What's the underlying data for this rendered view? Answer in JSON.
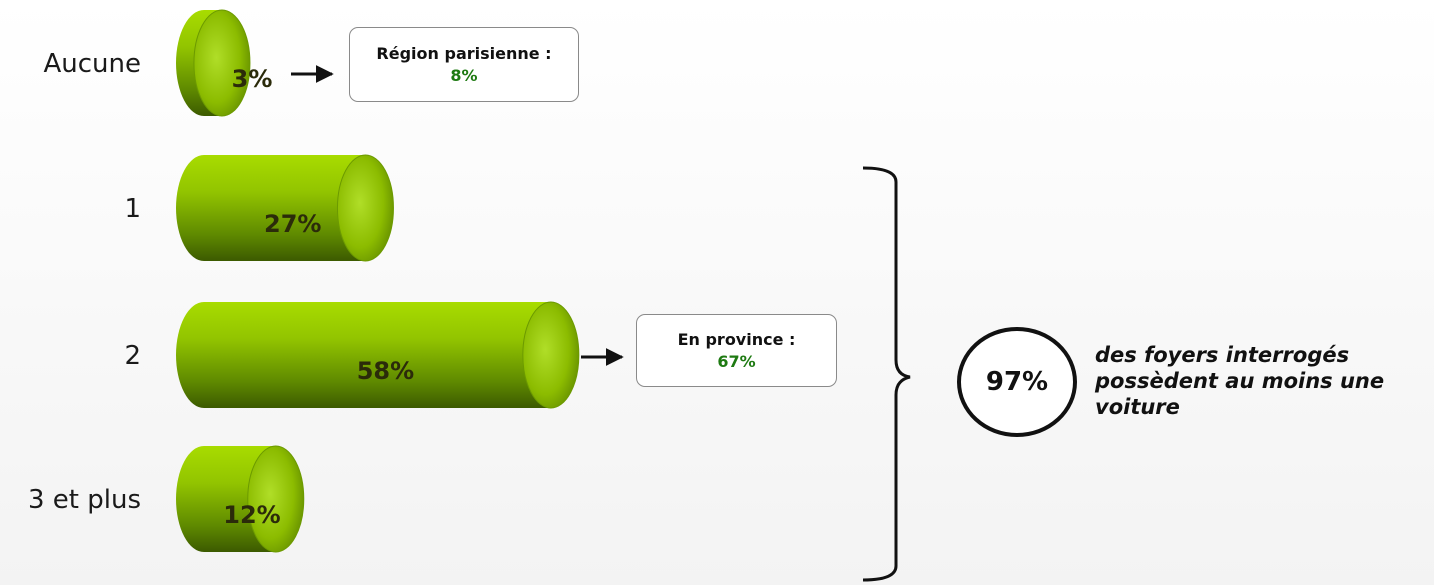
{
  "chart_data": {
    "type": "bar",
    "orientation": "horizontal",
    "categories": [
      "Aucune",
      "1",
      "2",
      "3 et plus"
    ],
    "values": [
      3,
      27,
      58,
      12
    ],
    "value_labels": [
      "3%",
      "27%",
      "58%",
      "12%"
    ],
    "unit": "%",
    "xlim": [
      0,
      60
    ],
    "grid": false,
    "legend": "none"
  },
  "annotations": {
    "paris": {
      "label": "Région parisienne :",
      "value": "8%"
    },
    "province": {
      "label": "En province :",
      "value": "67%"
    },
    "total": {
      "value": "97%",
      "text": "des foyers interrogés possèdent au moins une voiture"
    }
  },
  "colors": {
    "bar_light": "#a3d900",
    "bar_dark": "#3f5e00",
    "highlight_green": "#1e7a12"
  }
}
